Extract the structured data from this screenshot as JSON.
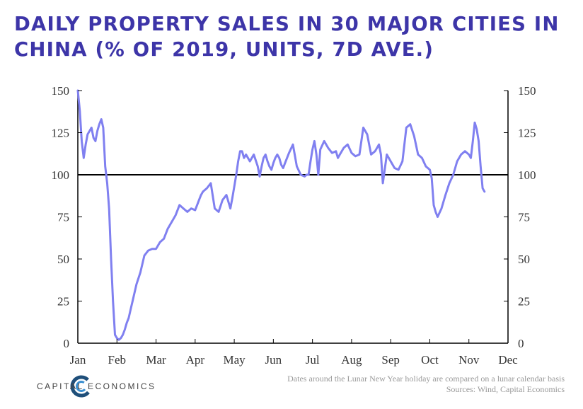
{
  "title": "DAILY PROPERTY SALES IN 30 MAJOR CITIES IN CHINA (% OF 2019, UNITS, 7D AVE.)",
  "footer": {
    "brand": "CAPITAL ECONOMICS",
    "note": "Dates around the Lunar New Year holiday are compared on a lunar calendar basis",
    "sources": "Sources: Wind, Capital Economics"
  },
  "chart_data": {
    "type": "line",
    "title": "DAILY PROPERTY SALES IN 30 MAJOR CITIES IN CHINA (% OF 2019, UNITS, 7D AVE.)",
    "xlabel": "",
    "ylabel": "",
    "ylim": [
      0,
      150
    ],
    "xlim_months": [
      0,
      11
    ],
    "x_tick_labels": [
      "Jan",
      "Feb",
      "Mar",
      "Apr",
      "May",
      "Jun",
      "Jul",
      "Aug",
      "Sep",
      "Oct",
      "Nov",
      "Dec"
    ],
    "y_ticks": [
      0,
      25,
      50,
      75,
      100,
      125,
      150
    ],
    "y_tick_labels": [
      "0",
      "25",
      "50",
      "75",
      "100",
      "125",
      "150"
    ],
    "reference_line": 100,
    "grid": false,
    "line_color": "#8080f0",
    "series": [
      {
        "name": "",
        "x_month": [
          0,
          0.05,
          0.1,
          0.15,
          0.2,
          0.25,
          0.3,
          0.35,
          0.4,
          0.45,
          0.5,
          0.55,
          0.6,
          0.65,
          0.7,
          0.75,
          0.8,
          0.85,
          0.9,
          0.95,
          1.0,
          1.05,
          1.1,
          1.15,
          1.2,
          1.25,
          1.3,
          1.35,
          1.4,
          1.5,
          1.6,
          1.7,
          1.8,
          1.9,
          2.0,
          2.1,
          2.2,
          2.3,
          2.4,
          2.5,
          2.6,
          2.7,
          2.8,
          2.9,
          3.0,
          3.05,
          3.1,
          3.15,
          3.2,
          3.3,
          3.4,
          3.5,
          3.6,
          3.7,
          3.8,
          3.9,
          3.95,
          4.0,
          4.05,
          4.1,
          4.15,
          4.2,
          4.25,
          4.3,
          4.4,
          4.5,
          4.6,
          4.65,
          4.7,
          4.75,
          4.8,
          4.85,
          4.9,
          4.95,
          5.0,
          5.05,
          5.1,
          5.15,
          5.2,
          5.25,
          5.3,
          5.4,
          5.5,
          5.6,
          5.7,
          5.8,
          5.85,
          5.9,
          5.95,
          6.0,
          6.05,
          6.1,
          6.15,
          6.2,
          6.3,
          6.4,
          6.5,
          6.6,
          6.65,
          6.7,
          6.8,
          6.9,
          7.0,
          7.1,
          7.2,
          7.3,
          7.4,
          7.5,
          7.6,
          7.7,
          7.75,
          7.8,
          7.9,
          8.0,
          8.1,
          8.2,
          8.3,
          8.4,
          8.5,
          8.6,
          8.7,
          8.8,
          8.9,
          9.0,
          9.05,
          9.1,
          9.15,
          9.2,
          9.3,
          9.4,
          9.5,
          9.6,
          9.7,
          9.8,
          9.9,
          10.0,
          10.05,
          10.1,
          10.15,
          10.2,
          10.25,
          10.3,
          10.35,
          10.4
        ],
        "values": [
          150,
          138,
          120,
          110,
          118,
          124,
          126,
          128,
          122,
          120,
          126,
          130,
          133,
          128,
          105,
          95,
          80,
          50,
          25,
          5,
          3,
          2,
          3,
          5,
          8,
          12,
          15,
          20,
          25,
          35,
          42,
          52,
          55,
          56,
          56,
          60,
          62,
          68,
          72,
          76,
          82,
          80,
          78,
          80,
          79,
          82,
          85,
          88,
          90,
          92,
          95,
          80,
          78,
          85,
          88,
          80,
          86,
          93,
          100,
          108,
          114,
          114,
          110,
          112,
          108,
          112,
          105,
          99,
          105,
          110,
          112,
          108,
          105,
          103,
          107,
          110,
          112,
          110,
          106,
          104,
          107,
          113,
          118,
          105,
          100,
          99,
          100,
          100,
          108,
          115,
          120,
          112,
          100,
          115,
          120,
          116,
          113,
          114,
          110,
          112,
          116,
          118,
          113,
          111,
          112,
          128,
          124,
          112,
          114,
          118,
          112,
          95,
          112,
          108,
          104,
          103,
          108,
          128,
          130,
          123,
          112,
          110,
          105,
          103,
          98,
          82,
          78,
          75,
          80,
          88,
          95,
          100,
          108,
          112,
          114,
          112,
          110,
          120,
          131,
          127,
          120,
          105,
          92,
          90
        ]
      }
    ]
  }
}
